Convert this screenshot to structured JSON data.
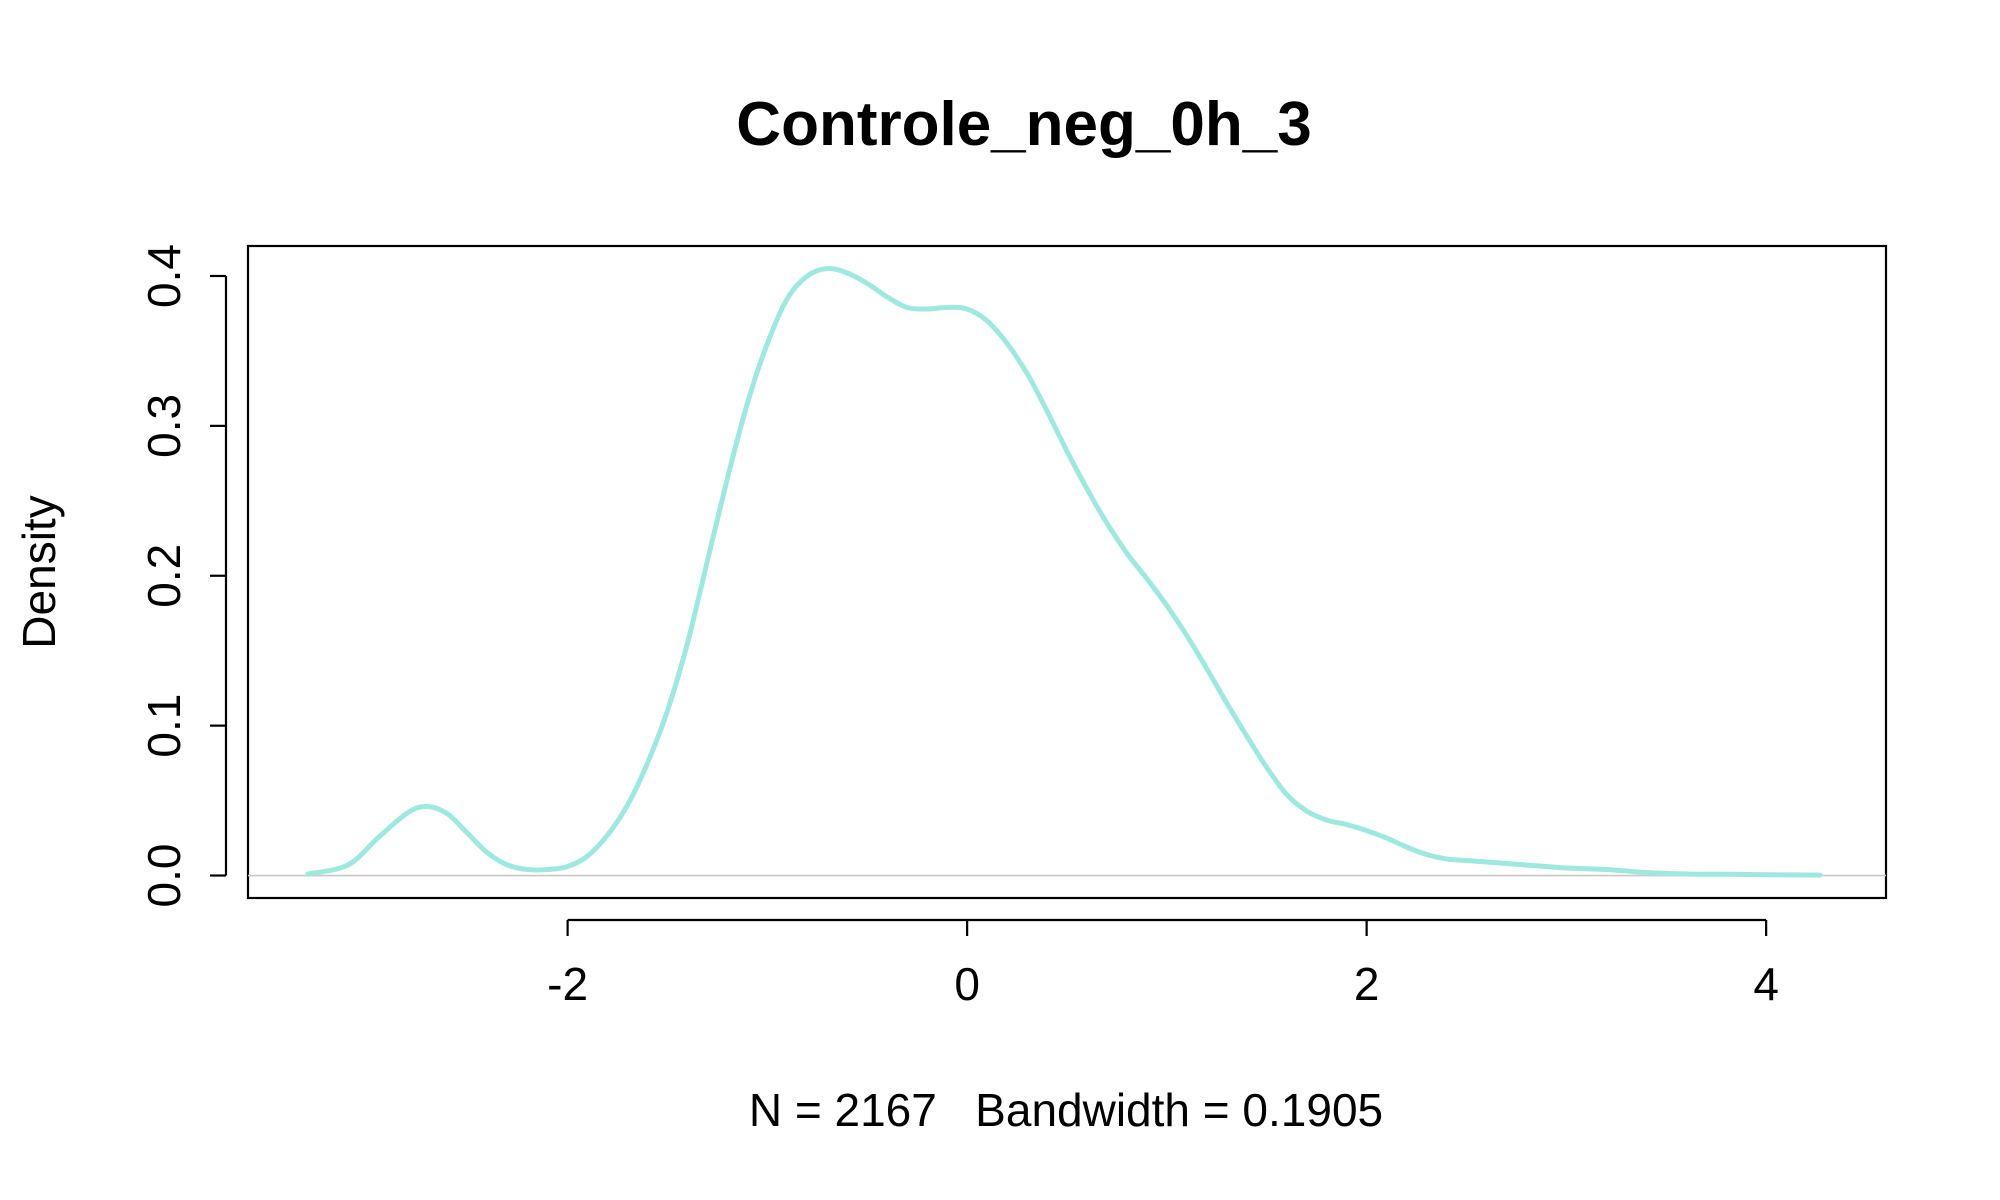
{
  "chart_data": {
    "type": "line",
    "title": "Controle_neg_0h_3",
    "subtitle": "N = 2167   Bandwidth = 0.1905",
    "xlabel": "",
    "ylabel": "Density",
    "xlim": [
      -3.6,
      4.6
    ],
    "ylim": [
      -0.015,
      0.42
    ],
    "x_ticks": [
      -2,
      0,
      2,
      4
    ],
    "x_tick_labels": [
      "-2",
      "0",
      "2",
      "4"
    ],
    "y_ticks": [
      0.0,
      0.1,
      0.2,
      0.3,
      0.4
    ],
    "y_tick_labels": [
      "0.0",
      "0.1",
      "0.2",
      "0.3",
      "0.4"
    ],
    "grid": false,
    "legend": "none",
    "zero_line": 0,
    "series": [
      {
        "color": "#9ee8e0",
        "x": [
          -3.3,
          -3.1,
          -2.95,
          -2.8,
          -2.7,
          -2.6,
          -2.5,
          -2.4,
          -2.3,
          -2.2,
          -2.1,
          -2.0,
          -1.9,
          -1.8,
          -1.7,
          -1.6,
          -1.5,
          -1.4,
          -1.3,
          -1.2,
          -1.1,
          -1.0,
          -0.9,
          -0.8,
          -0.7,
          -0.6,
          -0.5,
          -0.4,
          -0.3,
          -0.2,
          -0.1,
          0.0,
          0.1,
          0.2,
          0.3,
          0.4,
          0.5,
          0.6,
          0.7,
          0.8,
          0.9,
          1.0,
          1.1,
          1.2,
          1.3,
          1.4,
          1.5,
          1.6,
          1.7,
          1.8,
          1.9,
          2.0,
          2.1,
          2.2,
          2.3,
          2.4,
          2.5,
          2.6,
          2.7,
          2.8,
          2.9,
          3.0,
          3.2,
          3.4,
          3.6,
          3.8,
          4.0,
          4.27
        ],
        "y": [
          0.001,
          0.007,
          0.025,
          0.042,
          0.046,
          0.041,
          0.028,
          0.015,
          0.007,
          0.004,
          0.004,
          0.006,
          0.013,
          0.027,
          0.047,
          0.075,
          0.11,
          0.155,
          0.21,
          0.265,
          0.315,
          0.355,
          0.385,
          0.4,
          0.405,
          0.402,
          0.395,
          0.386,
          0.379,
          0.378,
          0.379,
          0.378,
          0.37,
          0.355,
          0.335,
          0.31,
          0.283,
          0.258,
          0.235,
          0.215,
          0.198,
          0.18,
          0.16,
          0.138,
          0.115,
          0.093,
          0.072,
          0.054,
          0.043,
          0.037,
          0.034,
          0.03,
          0.025,
          0.019,
          0.014,
          0.011,
          0.01,
          0.009,
          0.008,
          0.007,
          0.006,
          0.005,
          0.004,
          0.002,
          0.001,
          0.0008,
          0.0005,
          0.0003
        ]
      }
    ],
    "colors": {
      "line": "#9ee8e0",
      "zero_line": "#c8c8c8",
      "axes": "#000000"
    }
  }
}
